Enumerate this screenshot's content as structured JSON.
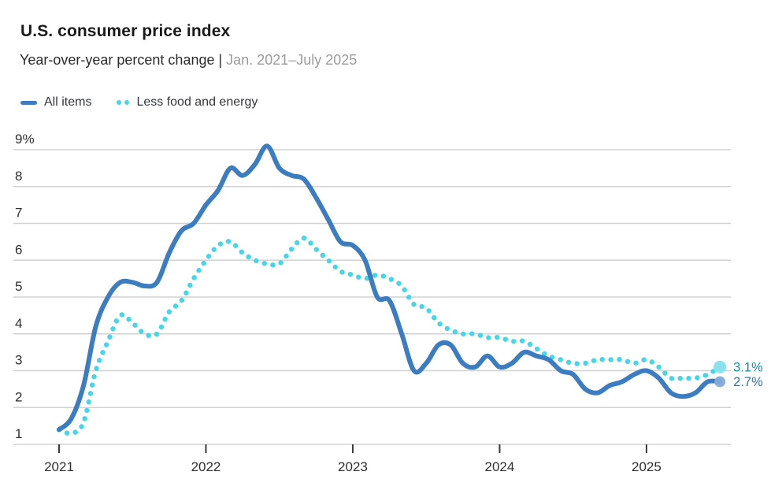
{
  "header": {
    "title": "U.S. consumer price index",
    "subtitle_main": "Year-over-year percent change | ",
    "subtitle_range": "Jan. 2021–July 2025"
  },
  "legend": {
    "items": [
      {
        "label": "All items"
      },
      {
        "label": "Less food and energy"
      }
    ]
  },
  "colors": {
    "all_items_line": "#3b7dc0",
    "core_line": "#45d7e8",
    "all_items_end_dot": "#84abd8",
    "core_end_dot": "#8ae2ef",
    "all_items_end_label": "#2e78b5",
    "core_end_label": "#1591a2",
    "gridline": "#d2d2d2",
    "axis_tick": "#3a3a3a",
    "axis_label": "#2e2e2e"
  },
  "chart_data": {
    "type": "line",
    "title": "U.S. consumer price index",
    "subtitle": "Year-over-year percent change",
    "date_range": "Jan. 2021–July 2025",
    "x_unit": "month",
    "x_start": "Jan 2021",
    "x_end": "July 2025",
    "x_tick_labels": [
      "2021",
      "2022",
      "2023",
      "2024",
      "2025"
    ],
    "y_axis": {
      "min": 1,
      "max": 9,
      "tick_values": [
        9,
        8,
        7,
        6,
        5,
        4,
        3,
        2,
        1
      ],
      "tick_labels": [
        "9%",
        "8",
        "7",
        "6",
        "5",
        "4",
        "3",
        "2",
        "1"
      ]
    },
    "grid": "horizontal-only",
    "legend_position": "top-left",
    "series": [
      {
        "name": "Less food and energy",
        "style": "dotted",
        "end_label": "3.1%",
        "end_value": 3.1,
        "values": [
          1.4,
          1.3,
          1.6,
          3.0,
          3.8,
          4.5,
          4.3,
          4.0,
          4.0,
          4.6,
          4.9,
          5.5,
          6.0,
          6.4,
          6.5,
          6.2,
          6.0,
          5.9,
          5.9,
          6.3,
          6.6,
          6.3,
          6.0,
          5.7,
          5.6,
          5.5,
          5.6,
          5.5,
          5.3,
          4.8,
          4.7,
          4.3,
          4.1,
          4.0,
          4.0,
          3.9,
          3.9,
          3.8,
          3.8,
          3.6,
          3.4,
          3.3,
          3.2,
          3.2,
          3.3,
          3.3,
          3.3,
          3.2,
          3.3,
          3.1,
          2.8,
          2.8,
          2.8,
          2.9,
          3.1
        ]
      },
      {
        "name": "All items",
        "style": "solid",
        "end_label": "2.7%",
        "end_value": 2.7,
        "values": [
          1.4,
          1.7,
          2.6,
          4.2,
          5.0,
          5.4,
          5.4,
          5.3,
          5.4,
          6.2,
          6.8,
          7.0,
          7.5,
          7.9,
          8.5,
          8.3,
          8.6,
          9.1,
          8.5,
          8.3,
          8.2,
          7.7,
          7.1,
          6.5,
          6.4,
          6.0,
          5.0,
          4.9,
          4.0,
          3.0,
          3.2,
          3.7,
          3.7,
          3.2,
          3.1,
          3.4,
          3.1,
          3.2,
          3.5,
          3.4,
          3.3,
          3.0,
          2.9,
          2.5,
          2.4,
          2.6,
          2.7,
          2.9,
          3.0,
          2.8,
          2.4,
          2.3,
          2.4,
          2.7,
          2.7
        ]
      }
    ]
  }
}
